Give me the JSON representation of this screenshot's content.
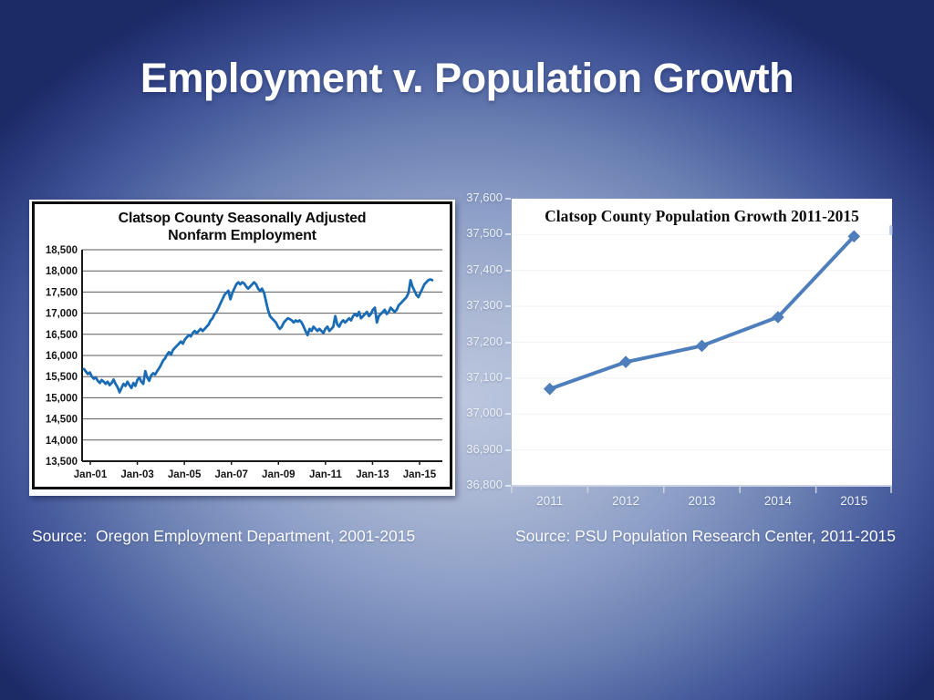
{
  "slide": {
    "title": "Employment v. Population Growth"
  },
  "sources": {
    "left": "Source:  Oregon Employment Department, 2001-2015",
    "right": "Source: PSU Population Research Center, 2011-2015"
  },
  "colors": {
    "employment_line": "#1b6cb5",
    "population_line": "#4e7fbc",
    "title_text": "#ffffff"
  },
  "chart_data": [
    {
      "type": "line",
      "title": "Clatsop County Seasonally Adjusted Nonfarm Employment",
      "x_frequency": "monthly",
      "x_range": [
        "Jan-01",
        "Sep-15"
      ],
      "x_tick_labels": [
        "Jan-01",
        "Jan-03",
        "Jan-05",
        "Jan-07",
        "Jan-09",
        "Jan-11",
        "Jan-13",
        "Jan-15"
      ],
      "ylim": [
        13500,
        18500
      ],
      "y_tick_step": 500,
      "y_tick_labels": [
        "18,500",
        "18,000",
        "17,500",
        "17,000",
        "16,500",
        "16,000",
        "15,500",
        "15,000",
        "14,500",
        "14,000",
        "13,500"
      ],
      "grid": true,
      "line_color": "#1b6cb5",
      "values": [
        15680,
        15620,
        15560,
        15600,
        15500,
        15450,
        15480,
        15400,
        15350,
        15420,
        15380,
        15330,
        15380,
        15300,
        15350,
        15430,
        15330,
        15250,
        15130,
        15230,
        15330,
        15280,
        15380,
        15300,
        15230,
        15350,
        15280,
        15420,
        15480,
        15380,
        15330,
        15630,
        15480,
        15400,
        15530,
        15580,
        15550,
        15630,
        15700,
        15780,
        15880,
        15930,
        16020,
        16080,
        16020,
        16130,
        16180,
        16230,
        16280,
        16330,
        16280,
        16380,
        16430,
        16480,
        16450,
        16530,
        16580,
        16530,
        16580,
        16630,
        16580,
        16630,
        16680,
        16730,
        16830,
        16880,
        16980,
        17030,
        17130,
        17230,
        17330,
        17430,
        17480,
        17530,
        17330,
        17480,
        17580,
        17680,
        17730,
        17680,
        17730,
        17700,
        17630,
        17580,
        17630,
        17680,
        17730,
        17680,
        17580,
        17530,
        17580,
        17480,
        17280,
        17080,
        16930,
        16880,
        16830,
        16780,
        16680,
        16630,
        16680,
        16780,
        16830,
        16880,
        16860,
        16830,
        16780,
        16830,
        16800,
        16830,
        16780,
        16680,
        16580,
        16480,
        16630,
        16580,
        16680,
        16630,
        16580,
        16630,
        16580,
        16530,
        16630,
        16680,
        16580,
        16630,
        16680,
        16930,
        16730,
        16680,
        16780,
        16830,
        16780,
        16830,
        16880,
        16830,
        16930,
        16980,
        16930,
        17030,
        16880,
        16930,
        16980,
        17030,
        16930,
        16980,
        17080,
        17130,
        16780,
        16930,
        16980,
        17030,
        17080,
        16980,
        17030,
        17130,
        17080,
        17030,
        17080,
        17180,
        17230,
        17280,
        17330,
        17380,
        17480,
        17780,
        17630,
        17530,
        17430,
        17380,
        17480,
        17580,
        17680,
        17730,
        17780,
        17800,
        17780
      ]
    },
    {
      "type": "line",
      "title": "Clatsop County Population Growth 2011-2015",
      "categories": [
        "2011",
        "2012",
        "2013",
        "2014",
        "2015"
      ],
      "values": [
        37070,
        37145,
        37190,
        37270,
        37495
      ],
      "ylim": [
        36800,
        37600
      ],
      "y_tick_step": 100,
      "y_tick_labels": [
        "37,600",
        "37,500",
        "37,400",
        "37,300",
        "37,200",
        "37,100",
        "37,000",
        "36,900",
        "36,800"
      ],
      "marker": "diamond",
      "grid": false,
      "legend_position": "none",
      "line_color": "#4e7fbc"
    }
  ]
}
